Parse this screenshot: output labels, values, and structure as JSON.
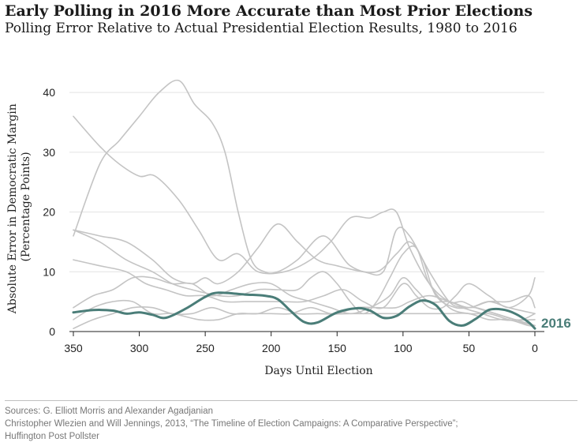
{
  "title": "Early Polling in 2016 More Accurate than Most Prior Elections",
  "subtitle": "Polling Error Relative to Actual Presidential Election Results, 1980 to 2016",
  "sources": [
    "Sources: G. Elliott Morris and Alexander Agadjanian",
    "Christopher Wlezien and Will Jennings, 2013, “The Timeline of Election Campaigns: A Comparative Perspective”;",
    "Huffington Post Pollster"
  ],
  "chart_data": {
    "type": "line",
    "xlabel": "Days Until Election",
    "ylabel_lines": [
      "Absolute Error in Democratic Margin",
      "(Percentage Points)"
    ],
    "xlim": [
      350,
      0
    ],
    "ylim": [
      0,
      42
    ],
    "x_ticks": [
      350,
      300,
      250,
      200,
      150,
      100,
      50,
      0
    ],
    "y_ticks": [
      0,
      10,
      20,
      30,
      40
    ],
    "grid": "horizontal",
    "colors": {
      "highlight": "#4a7d78",
      "other": "#c4c4c4",
      "grid": "#e3e3e3"
    },
    "series": [
      {
        "name": "",
        "highlight": false,
        "x": [
          350,
          330,
          315,
          300,
          285,
          270,
          258,
          245,
          235,
          225,
          215,
          205,
          195,
          180,
          160,
          140,
          120,
          105,
          95,
          85,
          75,
          60,
          45,
          30,
          15,
          0
        ],
        "y": [
          16,
          28,
          32,
          36,
          40,
          42,
          38,
          35,
          30,
          20,
          12,
          10,
          10,
          12,
          16,
          11,
          10,
          13,
          15,
          12,
          6,
          4,
          4,
          3,
          2,
          2
        ]
      },
      {
        "name": "",
        "highlight": false,
        "x": [
          350,
          330,
          315,
          300,
          288,
          270,
          255,
          240,
          225,
          210,
          190,
          170,
          155,
          140,
          125,
          115,
          105,
          95,
          80,
          65,
          55,
          45,
          30,
          15,
          0
        ],
        "y": [
          36,
          31,
          28,
          26,
          26,
          22,
          17,
          12,
          13,
          10,
          10,
          12,
          15,
          19,
          19,
          20,
          20,
          14,
          8,
          5,
          5,
          4,
          3,
          2,
          1
        ]
      },
      {
        "name": "",
        "highlight": false,
        "x": [
          350,
          330,
          310,
          290,
          275,
          260,
          250,
          240,
          225,
          210,
          195,
          180,
          165,
          150,
          130,
          115,
          105,
          95,
          80,
          65,
          55,
          40,
          25,
          10,
          0
        ],
        "y": [
          17,
          16,
          15,
          12,
          9,
          8,
          9,
          8,
          10,
          14,
          18,
          15,
          12,
          11,
          10,
          10,
          17,
          16,
          10,
          5,
          4,
          3,
          2,
          2,
          3
        ]
      },
      {
        "name": "",
        "highlight": false,
        "x": [
          350,
          330,
          310,
          290,
          275,
          260,
          240,
          225,
          210,
          195,
          180,
          170,
          160,
          150,
          140,
          130,
          120,
          110,
          100,
          90,
          80,
          65,
          50,
          35,
          20,
          0
        ],
        "y": [
          17,
          15,
          12,
          10,
          8,
          7,
          6,
          6,
          7,
          7,
          7,
          9,
          10,
          8,
          5,
          3,
          5,
          9,
          13,
          14,
          8,
          4,
          3,
          3,
          2,
          1
        ]
      },
      {
        "name": "",
        "highlight": false,
        "x": [
          350,
          330,
          310,
          295,
          280,
          265,
          250,
          235,
          220,
          205,
          190,
          175,
          160,
          145,
          130,
          115,
          100,
          90,
          80,
          70,
          60,
          50,
          35,
          20,
          5,
          0
        ],
        "y": [
          12,
          11,
          10,
          8,
          7,
          6,
          6,
          5,
          5,
          5,
          5,
          5,
          6,
          7,
          5,
          4,
          8,
          6,
          4,
          4,
          6,
          8,
          6,
          4,
          6,
          9
        ]
      },
      {
        "name": "",
        "highlight": false,
        "x": [
          350,
          335,
          320,
          305,
          290,
          275,
          260,
          245,
          230,
          215,
          200,
          185,
          170,
          155,
          140,
          125,
          110,
          100,
          90,
          80,
          65,
          50,
          35,
          20,
          0
        ],
        "y": [
          4,
          6,
          7,
          9,
          9,
          8,
          8,
          6,
          7,
          8,
          8,
          6,
          5,
          4,
          3,
          4,
          6,
          9,
          7,
          5,
          5,
          4,
          5,
          4,
          3
        ]
      },
      {
        "name": "",
        "highlight": false,
        "x": [
          350,
          335,
          320,
          305,
          290,
          275,
          255,
          240,
          225,
          210,
          195,
          180,
          165,
          150,
          135,
          120,
          105,
          95,
          80,
          65,
          50,
          35,
          20,
          5,
          0
        ],
        "y": [
          2,
          4,
          5,
          5,
          3,
          3,
          2,
          2,
          3,
          3,
          4,
          3,
          3,
          3,
          4,
          4,
          4,
          5,
          6,
          5,
          4,
          5,
          5,
          6,
          4
        ]
      },
      {
        "name": "",
        "highlight": false,
        "x": [
          350,
          335,
          320,
          305,
          290,
          275,
          260,
          245,
          230,
          215,
          200,
          185,
          170,
          155,
          140,
          125,
          110,
          95,
          80,
          65,
          50,
          35,
          20,
          5,
          0
        ],
        "y": [
          0.5,
          2,
          3,
          4,
          4,
          3,
          3,
          4,
          3,
          3,
          3,
          3,
          4,
          3,
          3,
          3,
          3,
          3,
          3,
          3,
          3,
          2,
          2,
          1,
          1
        ]
      },
      {
        "name": "2016",
        "highlight": true,
        "x": [
          350,
          335,
          320,
          310,
          300,
          290,
          280,
          265,
          250,
          240,
          220,
          205,
          195,
          185,
          175,
          165,
          150,
          135,
          125,
          115,
          105,
          95,
          85,
          75,
          65,
          55,
          45,
          35,
          25,
          15,
          5,
          0
        ],
        "y": [
          3.2,
          3.6,
          3.5,
          3.0,
          3.2,
          2.8,
          2.3,
          3.8,
          5.8,
          6.5,
          6.2,
          6.0,
          5.4,
          3.4,
          1.6,
          1.5,
          3.2,
          3.9,
          3.5,
          2.3,
          2.6,
          4.2,
          5.2,
          4.4,
          1.8,
          1.0,
          2.1,
          3.6,
          3.7,
          3.0,
          1.6,
          0.5
        ]
      }
    ]
  }
}
